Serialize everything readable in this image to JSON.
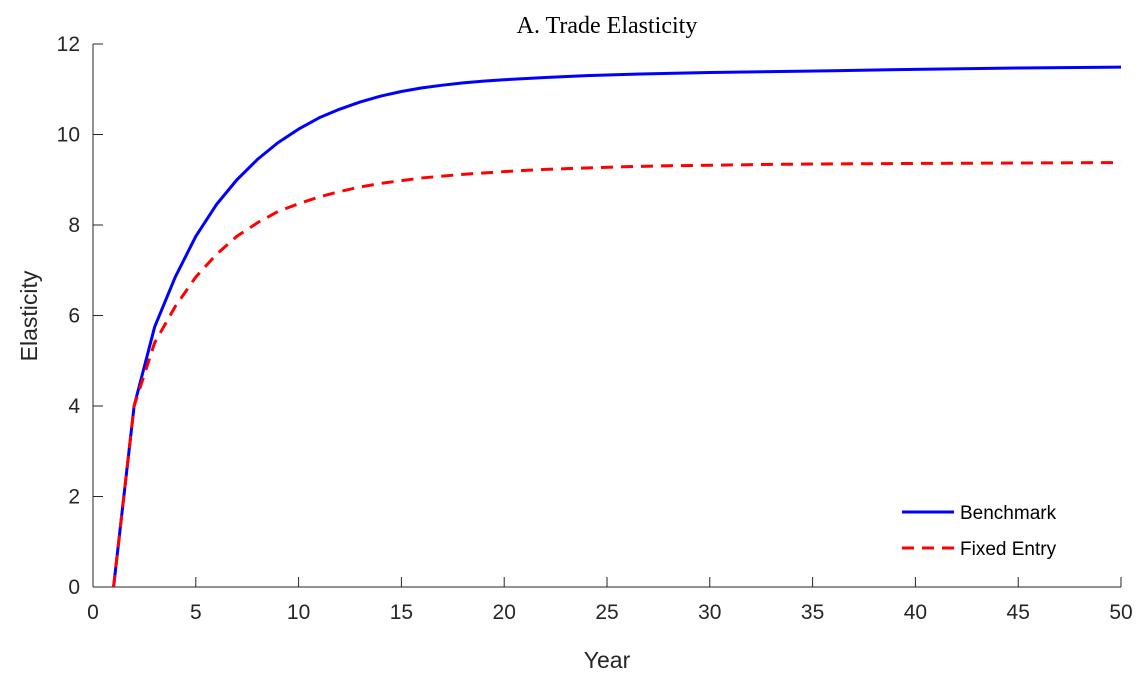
{
  "chart_data": {
    "type": "line",
    "title": "A. Trade Elasticity",
    "xlabel": "Year",
    "ylabel": "Elasticity",
    "xlim": [
      0,
      50
    ],
    "ylim": [
      0,
      12
    ],
    "xticks": [
      0,
      5,
      10,
      15,
      20,
      25,
      30,
      35,
      40,
      45,
      50
    ],
    "yticks": [
      0,
      2,
      4,
      6,
      8,
      10,
      12
    ],
    "grid": false,
    "legend_position": "bottom-right",
    "x": [
      1,
      2,
      3,
      4,
      5,
      6,
      7,
      8,
      9,
      10,
      11,
      12,
      13,
      14,
      15,
      16,
      17,
      18,
      19,
      20,
      22,
      24,
      26,
      28,
      30,
      33,
      36,
      40,
      45,
      50
    ],
    "series": [
      {
        "name": "Benchmark",
        "color": "#0000ff",
        "style": "solid",
        "values": [
          0,
          4.0,
          5.75,
          6.85,
          7.75,
          8.45,
          9.0,
          9.45,
          9.82,
          10.12,
          10.37,
          10.56,
          10.72,
          10.85,
          10.95,
          11.03,
          11.09,
          11.14,
          11.18,
          11.21,
          11.26,
          11.3,
          11.33,
          11.35,
          11.37,
          11.39,
          11.41,
          11.44,
          11.47,
          11.49
        ]
      },
      {
        "name": "Fixed Entry",
        "color": "#ff0000",
        "style": "dashed",
        "values": [
          0,
          4.0,
          5.4,
          6.2,
          6.85,
          7.35,
          7.75,
          8.05,
          8.3,
          8.47,
          8.62,
          8.74,
          8.84,
          8.92,
          8.98,
          9.04,
          9.08,
          9.12,
          9.15,
          9.18,
          9.23,
          9.26,
          9.29,
          9.31,
          9.32,
          9.34,
          9.35,
          9.36,
          9.37,
          9.38
        ]
      }
    ]
  }
}
